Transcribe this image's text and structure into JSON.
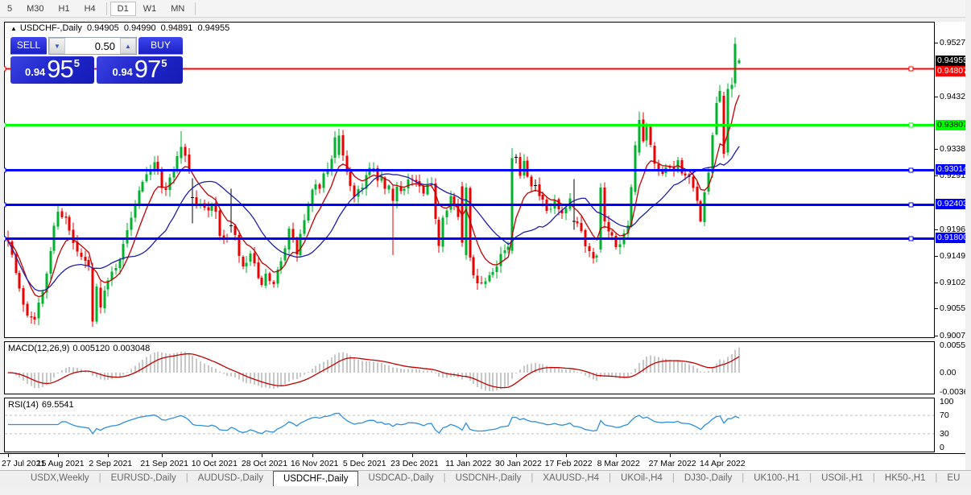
{
  "icons": {
    "collapse_arrow": "▲",
    "spinner_down": "▼",
    "spinner_up": "▲",
    "scroll_left": "◄",
    "scroll_right": "►"
  },
  "toolbar": {
    "active": "D1",
    "items": [
      {
        "label": "5",
        "sep_after": false
      },
      {
        "label": "M30",
        "sep_after": false
      },
      {
        "label": "H1",
        "sep_after": false
      },
      {
        "label": "H4",
        "sep_after": true
      },
      {
        "label": "D1",
        "sep_after": false
      },
      {
        "label": "W1",
        "sep_after": false
      },
      {
        "label": "MN",
        "sep_after": true
      }
    ]
  },
  "chart": {
    "symbol_title": "USDCHF-,Daily",
    "ohlc": {
      "open": "0.94905",
      "high": "0.94990",
      "low": "0.94891",
      "close": "0.94955"
    }
  },
  "quote_panel": {
    "sell_label": "SELL",
    "buy_label": "BUY",
    "volume": "0.50",
    "sell_price": {
      "prefix": "0.94",
      "big": "95",
      "sup": "5"
    },
    "buy_price": {
      "prefix": "0.94",
      "big": "97",
      "sup": "5"
    }
  },
  "indicators": {
    "macd_label": "MACD(12,26,9)",
    "macd_value": "0.005120",
    "macd_signal_value": "0.003048",
    "rsi_label": "RSI(14)",
    "rsi_value": "69.5541"
  },
  "price_axis": {
    "ticks": [
      "0.95270",
      "0.94320",
      "0.93380",
      "0.92910",
      "0.91960",
      "0.91490",
      "0.91020",
      "0.90550",
      "0.90070"
    ],
    "badges": [
      {
        "text": "0.94955",
        "price": 0.94955,
        "bg": "#000000",
        "fg": "#ffffff",
        "kind": "current-price-badge"
      },
      {
        "text": "0.94807",
        "price": 0.94807,
        "bg": "#ff0000",
        "fg": "#ffffff",
        "kind": "hline-badge"
      },
      {
        "text": "0.93807",
        "price": 0.93807,
        "bg": "#00ff00",
        "fg": "#000000",
        "kind": "hline-badge"
      },
      {
        "text": "0.93014",
        "price": 0.93014,
        "bg": "#0000ff",
        "fg": "#ffffff",
        "kind": "hline-badge"
      },
      {
        "text": "0.92403",
        "price": 0.92403,
        "bg": "#0000ff",
        "fg": "#ffffff",
        "kind": "hline-badge"
      },
      {
        "text": "0.91800",
        "price": 0.918,
        "bg": "#0000ff",
        "fg": "#ffffff",
        "kind": "hline-badge"
      }
    ],
    "macd_ticks": [
      "0.005537",
      "0.00",
      "-0.00364"
    ],
    "rsi_ticks": [
      "100",
      "70",
      "30",
      "0"
    ]
  },
  "tabs": {
    "items": [
      {
        "label": "USDX,Weekly",
        "active": false
      },
      {
        "label": "EURUSD-,Daily",
        "active": false
      },
      {
        "label": "AUDUSD-,Daily",
        "active": false
      },
      {
        "label": "USDCHF-,Daily",
        "active": true
      },
      {
        "label": "USDCAD-,Daily",
        "active": false
      },
      {
        "label": "USDCNH-,Daily",
        "active": false
      },
      {
        "label": "XAUUSD-,H4",
        "active": false
      },
      {
        "label": "UKOil-,H4",
        "active": false
      },
      {
        "label": "DJ30-,Daily",
        "active": false
      },
      {
        "label": "UK100-,H1",
        "active": false
      },
      {
        "label": "USOil-,H1",
        "active": false
      },
      {
        "label": "HK50-,H1",
        "active": false
      },
      {
        "label": "EU",
        "active": false
      }
    ]
  },
  "chart_data": {
    "type": "candlestick",
    "title": "USDCHF-, Daily",
    "n_candles": 191,
    "price_range": {
      "top": 0.9527,
      "bottom": 0.9007
    },
    "last_candle_ohlc": {
      "o": 0.94905,
      "h": 0.9499,
      "l": 0.94891,
      "c": 0.94955
    },
    "current_price": 0.94955,
    "seed": 7,
    "close_keypoints": [
      [
        0,
        0.9185
      ],
      [
        1,
        0.915
      ],
      [
        3,
        0.9085
      ],
      [
        5,
        0.9048
      ],
      [
        7,
        0.9045
      ],
      [
        9,
        0.9078
      ],
      [
        11,
        0.916
      ],
      [
        13,
        0.9235
      ],
      [
        15,
        0.9212
      ],
      [
        17,
        0.9168
      ],
      [
        19,
        0.914
      ],
      [
        21,
        0.913
      ],
      [
        24,
        0.9068
      ],
      [
        26,
        0.91
      ],
      [
        28,
        0.9135
      ],
      [
        30,
        0.9162
      ],
      [
        32,
        0.9222
      ],
      [
        34,
        0.9272
      ],
      [
        36,
        0.9302
      ],
      [
        38,
        0.9318
      ],
      [
        40,
        0.9268
      ],
      [
        42,
        0.9282
      ],
      [
        44,
        0.9328
      ],
      [
        46,
        0.933
      ],
      [
        47,
        0.93
      ],
      [
        49,
        0.9242
      ],
      [
        51,
        0.9232
      ],
      [
        53,
        0.9245
      ],
      [
        55,
        0.919
      ],
      [
        57,
        0.9172
      ],
      [
        59,
        0.9178
      ],
      [
        61,
        0.912
      ],
      [
        63,
        0.9152
      ],
      [
        65,
        0.91
      ],
      [
        67,
        0.9108
      ],
      [
        69,
        0.9088
      ],
      [
        71,
        0.9148
      ],
      [
        73,
        0.919
      ],
      [
        75,
        0.9155
      ],
      [
        77,
        0.9212
      ],
      [
        79,
        0.9258
      ],
      [
        81,
        0.9275
      ],
      [
        83,
        0.9305
      ],
      [
        85,
        0.9352
      ],
      [
        88,
        0.9302
      ],
      [
        90,
        0.9255
      ],
      [
        92,
        0.9278
      ],
      [
        94,
        0.93
      ],
      [
        96,
        0.9288
      ],
      [
        98,
        0.9268
      ],
      [
        102,
        0.9268
      ],
      [
        104,
        0.9285
      ],
      [
        106,
        0.9278
      ],
      [
        108,
        0.9255
      ],
      [
        110,
        0.9272
      ],
      [
        112,
        0.917
      ],
      [
        113,
        0.9225
      ],
      [
        115,
        0.9255
      ],
      [
        117,
        0.9212
      ],
      [
        121,
        0.912
      ],
      [
        123,
        0.9098
      ],
      [
        125,
        0.9122
      ],
      [
        127,
        0.914
      ],
      [
        129,
        0.9162
      ],
      [
        130,
        0.9155
      ],
      [
        132,
        0.9328
      ],
      [
        133,
        0.93
      ],
      [
        134,
        0.9318
      ],
      [
        136,
        0.9282
      ],
      [
        138,
        0.9255
      ],
      [
        140,
        0.9222
      ],
      [
        142,
        0.9242
      ],
      [
        144,
        0.9215
      ],
      [
        146,
        0.924
      ],
      [
        148,
        0.9205
      ],
      [
        150,
        0.9172
      ],
      [
        152,
        0.915
      ],
      [
        153,
        0.9158
      ],
      [
        156,
        0.9192
      ],
      [
        158,
        0.917
      ],
      [
        160,
        0.9185
      ],
      [
        161,
        0.9212
      ],
      [
        162,
        0.9262
      ],
      [
        165,
        0.9352
      ],
      [
        166,
        0.9372
      ],
      [
        168,
        0.9305
      ],
      [
        170,
        0.929
      ],
      [
        172,
        0.9302
      ],
      [
        174,
        0.9312
      ],
      [
        176,
        0.9295
      ],
      [
        178,
        0.9262
      ],
      [
        180,
        0.9218
      ],
      [
        181,
        0.9255
      ],
      [
        182,
        0.9302
      ],
      [
        183,
        0.9352
      ],
      [
        184,
        0.942
      ],
      [
        185,
        0.9433
      ]
    ],
    "candle_overrides": [
      {
        "i": 22,
        "o": 0.9128,
        "h": 0.9136,
        "l": 0.9023,
        "c": 0.9032
      },
      {
        "i": 45,
        "o": 0.9322,
        "h": 0.937,
        "l": 0.9312,
        "c": 0.9342
      },
      {
        "i": 48,
        "o": 0.9252,
        "h": 0.9286,
        "l": 0.9206,
        "c": 0.9252
      },
      {
        "i": 58,
        "o": 0.9202,
        "h": 0.9268,
        "l": 0.919,
        "c": 0.9202
      },
      {
        "i": 86,
        "o": 0.9328,
        "h": 0.9374,
        "l": 0.9322,
        "c": 0.9362
      },
      {
        "i": 100,
        "o": 0.9268,
        "h": 0.9275,
        "l": 0.915,
        "c": 0.9246
      },
      {
        "i": 118,
        "o": 0.9272,
        "h": 0.928,
        "l": 0.9165,
        "c": 0.9172
      },
      {
        "i": 119,
        "o": 0.915,
        "h": 0.9278,
        "l": 0.9142,
        "c": 0.927
      },
      {
        "i": 131,
        "o": 0.9158,
        "h": 0.934,
        "l": 0.9152,
        "c": 0.9322
      },
      {
        "i": 147,
        "o": 0.921,
        "h": 0.9285,
        "l": 0.9195,
        "c": 0.921
      },
      {
        "i": 154,
        "o": 0.916,
        "h": 0.9278,
        "l": 0.9154,
        "c": 0.927
      },
      {
        "i": 155,
        "o": 0.927,
        "h": 0.9279,
        "l": 0.9198,
        "c": 0.921
      },
      {
        "i": 163,
        "o": 0.9262,
        "h": 0.9352,
        "l": 0.9256,
        "c": 0.9345
      },
      {
        "i": 164,
        "o": 0.9332,
        "h": 0.9405,
        "l": 0.9326,
        "c": 0.939
      },
      {
        "i": 186,
        "o": 0.9433,
        "h": 0.944,
        "l": 0.9322,
        "c": 0.933
      },
      {
        "i": 187,
        "o": 0.9332,
        "h": 0.9455,
        "l": 0.9326,
        "c": 0.9445
      },
      {
        "i": 188,
        "o": 0.9445,
        "h": 0.9465,
        "l": 0.943,
        "c": 0.9452
      },
      {
        "i": 189,
        "o": 0.9455,
        "h": 0.9536,
        "l": 0.9448,
        "c": 0.9525
      },
      {
        "i": 190,
        "o": 0.94905,
        "h": 0.9499,
        "l": 0.94891,
        "c": 0.94955
      }
    ],
    "horizontal_lines": [
      {
        "price": 0.94807,
        "color": "#ff0000",
        "width": 2
      },
      {
        "price": 0.93807,
        "color": "#00ff00",
        "width": 3
      },
      {
        "price": 0.93014,
        "color": "#0000ff",
        "width": 3
      },
      {
        "price": 0.92403,
        "color": "#0000ff",
        "width": 3
      },
      {
        "price": 0.918,
        "color": "#0000ff",
        "width": 3
      }
    ],
    "moving_averages": [
      {
        "type": "ema",
        "period": 8,
        "color": "#c00000"
      },
      {
        "type": "sma",
        "period": 20,
        "color": "#1e1ea8"
      }
    ],
    "macd": {
      "fast": 12,
      "slow": 26,
      "signal": 9,
      "value": 0.00512,
      "signal_value": 0.003048,
      "bar_color": "#c8c8c8",
      "line_color": "#c00000",
      "axis_max": 0.005537,
      "axis_min": -0.00364
    },
    "rsi": {
      "period": 14,
      "value": 69.5541,
      "levels": [
        70,
        30
      ],
      "color": "#2f8fde",
      "level_color": "#bfbfbf"
    },
    "colors": {
      "up": "#00b22c",
      "down": "#ec0000",
      "doji": "#000000"
    },
    "date_ticks": [
      {
        "i": 0,
        "label": "27 Jul 2021"
      },
      {
        "i": 13,
        "label": "15 Aug 2021"
      },
      {
        "i": 26,
        "label": "2 Sep 2021"
      },
      {
        "i": 40,
        "label": "21 Sep 2021"
      },
      {
        "i": 53,
        "label": "10 Oct 2021"
      },
      {
        "i": 66,
        "label": "28 Oct 2021"
      },
      {
        "i": 79,
        "label": "16 Nov 2021"
      },
      {
        "i": 92,
        "label": "5 Dec 2021"
      },
      {
        "i": 105,
        "label": "23 Dec 2021"
      },
      {
        "i": 119,
        "label": "11 Jan 2022"
      },
      {
        "i": 132,
        "label": "30 Jan 2022"
      },
      {
        "i": 145,
        "label": "17 Feb 2022"
      },
      {
        "i": 158,
        "label": "8 Mar 2022"
      },
      {
        "i": 172,
        "label": "27 Mar 2022"
      },
      {
        "i": 185,
        "label": "14 Apr 2022"
      }
    ]
  }
}
